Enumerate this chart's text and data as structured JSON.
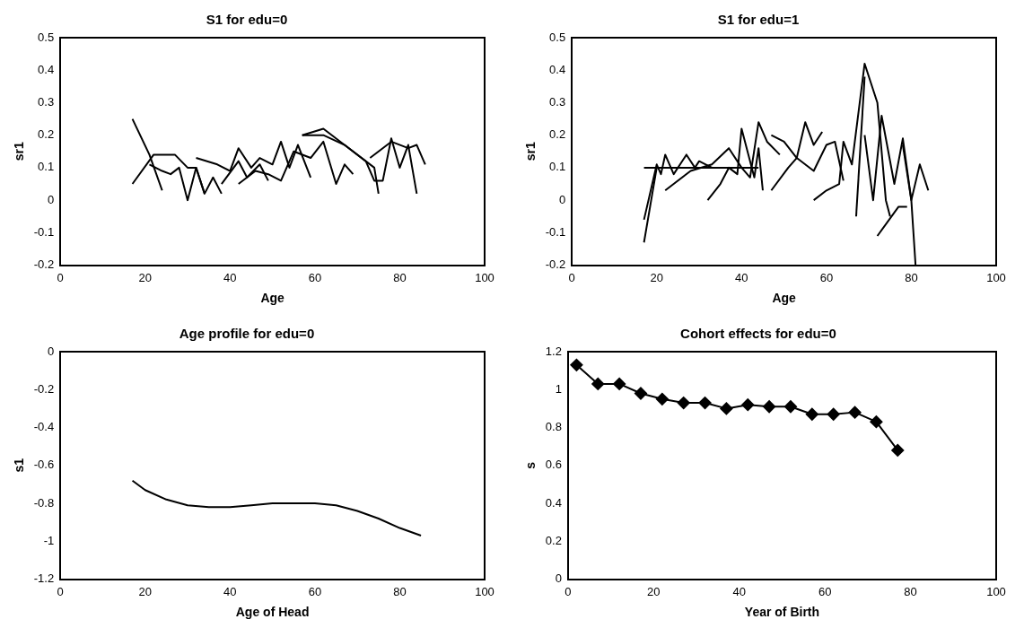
{
  "chart_data": [
    {
      "type": "line",
      "title": "S1 for edu=0",
      "xlabel": "Age",
      "ylabel": "sr1",
      "xlim": [
        0,
        100
      ],
      "xticks": [
        0,
        20,
        40,
        60,
        80,
        100
      ],
      "ylim": [
        -0.2,
        0.5
      ],
      "yticks": [
        -0.2,
        -0.1,
        0,
        0.1,
        0.2,
        0.3,
        0.4,
        0.5
      ],
      "grid": false,
      "legend": false,
      "marker": "none",
      "line_style": "solid",
      "series": [
        {
          "color": "#000000",
          "x": [
            17,
            21,
            24
          ],
          "values": [
            0.25,
            0.14,
            0.03
          ]
        },
        {
          "color": "#000000",
          "x": [
            17,
            22,
            27,
            30,
            32,
            34,
            36,
            38
          ],
          "values": [
            0.05,
            0.14,
            0.14,
            0.1,
            0.1,
            0.02,
            0.07,
            0.02
          ]
        },
        {
          "color": "#000000",
          "x": [
            21,
            24,
            26,
            28,
            30,
            32,
            34
          ],
          "values": [
            0.11,
            0.09,
            0.08,
            0.1,
            0.0,
            0.1,
            0.02
          ]
        },
        {
          "color": "#000000",
          "x": [
            32,
            37,
            40,
            42,
            45,
            47,
            50,
            52,
            54,
            56,
            59
          ],
          "values": [
            0.13,
            0.11,
            0.09,
            0.16,
            0.1,
            0.13,
            0.11,
            0.18,
            0.1,
            0.17,
            0.07
          ]
        },
        {
          "color": "#000000",
          "x": [
            38,
            42,
            44,
            47,
            49
          ],
          "values": [
            0.05,
            0.12,
            0.07,
            0.11,
            0.06
          ]
        },
        {
          "color": "#000000",
          "x": [
            42,
            46,
            49,
            52,
            55,
            59,
            62,
            65,
            67,
            69
          ],
          "values": [
            0.05,
            0.09,
            0.08,
            0.06,
            0.15,
            0.13,
            0.18,
            0.05,
            0.11,
            0.08
          ]
        },
        {
          "color": "#000000",
          "x": [
            57,
            62,
            68,
            74,
            75
          ],
          "values": [
            0.2,
            0.22,
            0.16,
            0.1,
            0.02
          ]
        },
        {
          "color": "#000000",
          "x": [
            57,
            62,
            67,
            72,
            74,
            76,
            78,
            80,
            82,
            84
          ],
          "values": [
            0.2,
            0.2,
            0.17,
            0.12,
            0.06,
            0.06,
            0.19,
            0.1,
            0.17,
            0.02
          ]
        },
        {
          "color": "#000000",
          "x": [
            73,
            78,
            82,
            84,
            86
          ],
          "values": [
            0.13,
            0.18,
            0.16,
            0.17,
            0.11
          ]
        }
      ]
    },
    {
      "type": "line",
      "title": "S1 for edu=1",
      "xlabel": "Age",
      "ylabel": "sr1",
      "xlim": [
        0,
        100
      ],
      "xticks": [
        0,
        20,
        40,
        60,
        80,
        100
      ],
      "ylim": [
        -0.2,
        0.5
      ],
      "yticks": [
        -0.2,
        -0.1,
        0,
        0.1,
        0.2,
        0.3,
        0.4,
        0.5
      ],
      "grid": false,
      "legend": false,
      "marker": "none",
      "line_style": "solid",
      "series": [
        {
          "color": "#000000",
          "x": [
            17,
            20,
            21,
            22,
            24,
            27,
            29,
            30,
            33
          ],
          "values": [
            -0.06,
            0.11,
            0.08,
            0.14,
            0.08,
            0.14,
            0.1,
            0.12,
            0.1
          ]
        },
        {
          "color": "#000000",
          "x": [
            17,
            20,
            22
          ],
          "values": [
            -0.13,
            0.1,
            0.1
          ]
        },
        {
          "color": "#000000",
          "x": [
            17,
            44
          ],
          "values": [
            0.1,
            0.1
          ]
        },
        {
          "color": "#000000",
          "x": [
            22,
            28,
            33,
            37,
            40,
            42,
            44,
            46,
            49
          ],
          "values": [
            0.03,
            0.09,
            0.11,
            0.16,
            0.1,
            0.07,
            0.24,
            0.18,
            0.14
          ]
        },
        {
          "color": "#000000",
          "x": [
            32,
            35,
            37,
            39,
            40,
            43,
            44,
            45
          ],
          "values": [
            0.0,
            0.05,
            0.1,
            0.08,
            0.22,
            0.07,
            0.16,
            0.03
          ]
        },
        {
          "color": "#000000",
          "x": [
            47,
            51,
            53,
            55,
            57,
            59
          ],
          "values": [
            0.03,
            0.1,
            0.13,
            0.24,
            0.17,
            0.21
          ]
        },
        {
          "color": "#000000",
          "x": [
            47,
            50,
            53,
            57,
            60,
            62,
            64
          ],
          "values": [
            0.2,
            0.18,
            0.13,
            0.09,
            0.17,
            0.18,
            0.06
          ]
        },
        {
          "color": "#000000",
          "x": [
            57,
            60,
            63,
            64,
            66,
            69,
            72,
            74,
            75
          ],
          "values": [
            0.0,
            0.03,
            0.05,
            0.18,
            0.11,
            0.42,
            0.3,
            0.0,
            -0.05
          ]
        },
        {
          "color": "#000000",
          "x": [
            67,
            69
          ],
          "values": [
            -0.05,
            0.38
          ]
        },
        {
          "color": "#000000",
          "x": [
            69,
            71,
            73,
            76,
            78,
            80,
            81
          ],
          "values": [
            0.2,
            0.0,
            0.26,
            0.05,
            0.19,
            0.0,
            -0.2
          ]
        },
        {
          "color": "#000000",
          "x": [
            72,
            77,
            79
          ],
          "values": [
            -0.11,
            -0.02,
            -0.02
          ]
        },
        {
          "color": "#000000",
          "x": [
            78,
            80,
            82,
            84
          ],
          "values": [
            0.17,
            0.0,
            0.11,
            0.03
          ]
        }
      ]
    },
    {
      "type": "line",
      "title": "Age profile for edu=0",
      "xlabel": "Age of Head",
      "ylabel": "s1",
      "xlim": [
        0,
        100
      ],
      "xticks": [
        0,
        20,
        40,
        60,
        80,
        100
      ],
      "ylim": [
        -1.2,
        0
      ],
      "yticks": [
        -1.2,
        -1,
        -0.8,
        -0.6,
        -0.4,
        -0.2,
        0
      ],
      "grid": false,
      "legend": false,
      "marker": "none",
      "line_style": "solid",
      "series": [
        {
          "color": "#000000",
          "x": [
            17,
            20,
            25,
            30,
            35,
            40,
            45,
            50,
            55,
            60,
            65,
            70,
            75,
            80,
            85
          ],
          "values": [
            -0.68,
            -0.73,
            -0.78,
            -0.81,
            -0.82,
            -0.82,
            -0.81,
            -0.8,
            -0.8,
            -0.8,
            -0.81,
            -0.84,
            -0.88,
            -0.93,
            -0.97
          ]
        }
      ]
    },
    {
      "type": "line",
      "title": "Cohort effects for edu=0",
      "xlabel": "Year of Birth",
      "ylabel": "s",
      "xlim": [
        0,
        100
      ],
      "xticks": [
        0,
        20,
        40,
        60,
        80,
        100
      ],
      "ylim": [
        0,
        1.2
      ],
      "yticks": [
        0,
        0.2,
        0.4,
        0.6,
        0.8,
        1,
        1.2
      ],
      "grid": false,
      "legend": false,
      "marker": "diamond",
      "line_style": "solid",
      "series": [
        {
          "color": "#000000",
          "x": [
            2,
            7,
            12,
            17,
            22,
            27,
            32,
            37,
            42,
            47,
            52,
            57,
            62,
            67,
            72,
            77
          ],
          "values": [
            1.13,
            1.03,
            1.03,
            0.98,
            0.95,
            0.93,
            0.93,
            0.9,
            0.92,
            0.91,
            0.91,
            0.87,
            0.87,
            0.88,
            0.83,
            0.68
          ]
        }
      ]
    }
  ]
}
